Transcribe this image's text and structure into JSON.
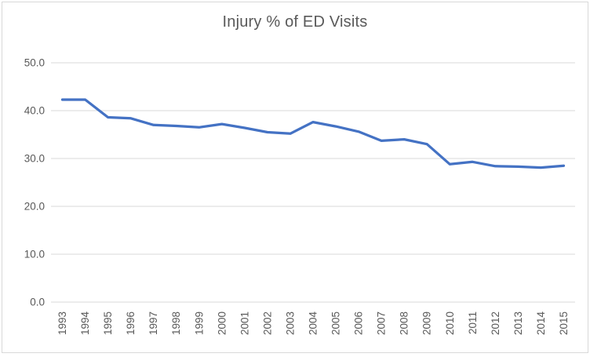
{
  "chart": {
    "title": "Injury % of ED Visits"
  },
  "chart_data": {
    "type": "line",
    "title": "Injury % of ED Visits",
    "categories": [
      "1993",
      "1994",
      "1995",
      "1996",
      "1997",
      "1998",
      "1999",
      "2000",
      "2001",
      "2002",
      "2003",
      "2004",
      "2005",
      "2006",
      "2007",
      "2008",
      "2009",
      "2010",
      "2011",
      "2012",
      "2013",
      "2014",
      "2015"
    ],
    "series": [
      {
        "name": "Injury % of ED Visits",
        "values": [
          42.3,
          42.3,
          38.6,
          38.4,
          37.0,
          36.8,
          36.5,
          37.2,
          36.4,
          35.5,
          35.2,
          37.6,
          36.7,
          35.6,
          33.7,
          34.0,
          33.0,
          28.8,
          29.3,
          28.4,
          28.3,
          28.1,
          28.5
        ]
      }
    ],
    "xlabel": "",
    "ylabel": "",
    "ylim": [
      0,
      50
    ],
    "yticks": [
      0,
      10,
      20,
      30,
      40,
      50
    ],
    "ytick_labels": [
      "0.0",
      "10.0",
      "20.0",
      "30.0",
      "40.0",
      "50.0"
    ],
    "xtick_rotation_deg": -90,
    "grid": true,
    "legend": "none",
    "line_color": "#4472C4",
    "gridline_color": "#D9D9D9",
    "text_color": "#595959",
    "frame_color": "#D9D9D9"
  }
}
